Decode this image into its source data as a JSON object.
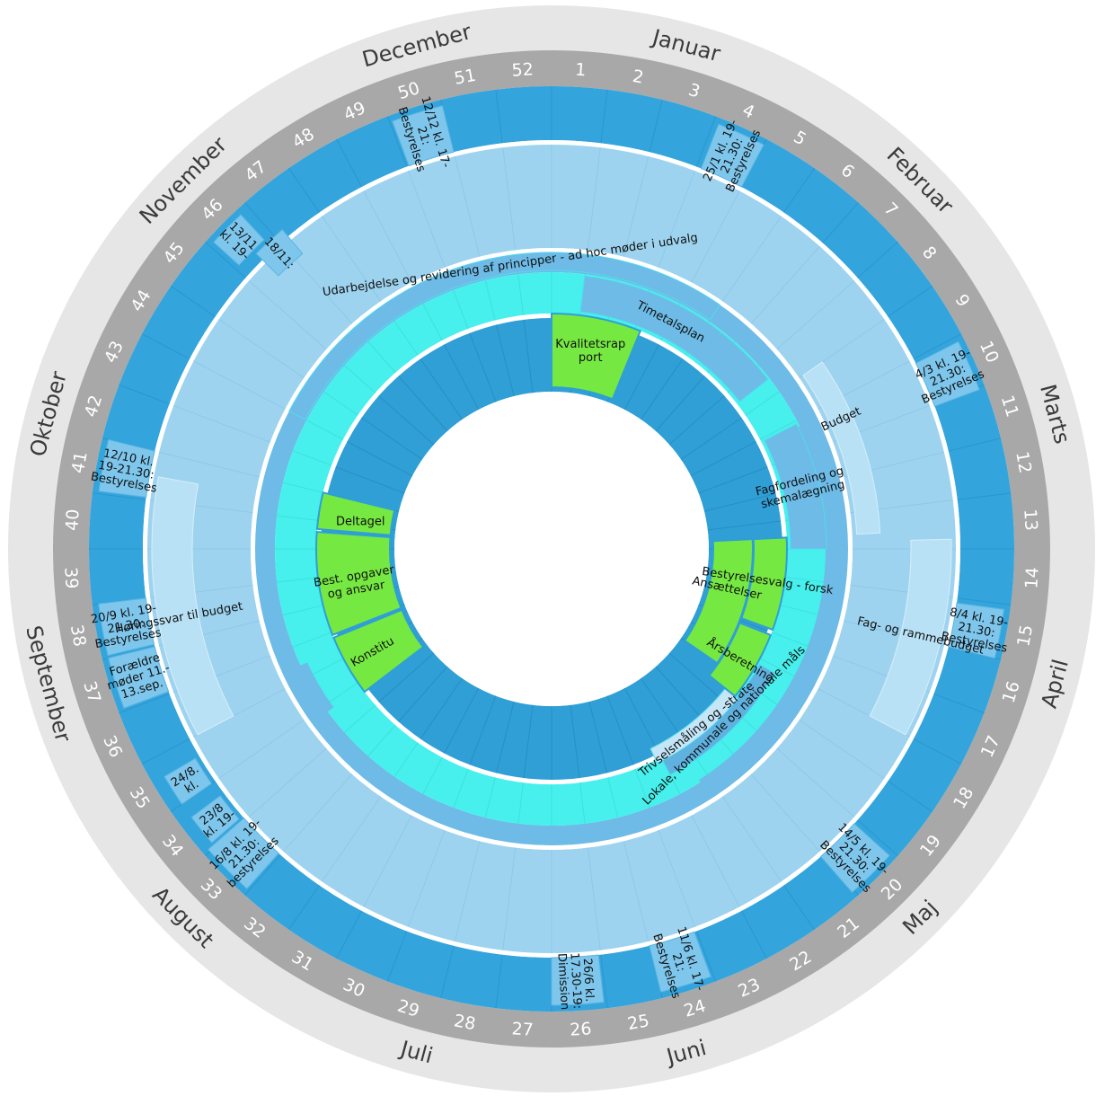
{
  "months": [
    "Januar",
    "Februar",
    "Marts",
    "April",
    "Maj",
    "Juni",
    "Juli",
    "August",
    "September",
    "Oktober",
    "November",
    "December"
  ],
  "weeks": [
    "1",
    "2",
    "3",
    "4",
    "5",
    "6",
    "7",
    "8",
    "9",
    "10",
    "11",
    "12",
    "13",
    "14",
    "15",
    "16",
    "17",
    "18",
    "19",
    "20",
    "21",
    "22",
    "23",
    "24",
    "25",
    "26",
    "27",
    "28",
    "29",
    "30",
    "31",
    "32",
    "33",
    "34",
    "35",
    "36",
    "37",
    "38",
    "39",
    "40",
    "41",
    "42",
    "43",
    "44",
    "45",
    "46",
    "47",
    "48",
    "49",
    "50",
    "51",
    "52"
  ],
  "colors": {
    "outer_ring": "#e6e6e6",
    "week_ring": "#a8a8a8",
    "events_ring": "#33a4dc",
    "event_box": "#7ec6ec",
    "light_ring": "#9ed3ef",
    "pale_band": "#b8e1f5",
    "mid_band": "#6dbbe6",
    "cyan_ring": "#47f0ec",
    "inner_ring": "#2f9fd6",
    "green": "#76e842",
    "separator": "#ffffff"
  },
  "events": [
    {
      "name": "event-week4",
      "w0": 3.1,
      "w1": 4.0,
      "r0": 455,
      "r1": 508,
      "lines": [
        "25/1 kl. 19-",
        "21.30:",
        "Bestyrelses"
      ]
    },
    {
      "name": "event-week10",
      "w0": 9.1,
      "w1": 10.05,
      "r0": 455,
      "r1": 508,
      "lines": [
        "4/3 kl. 19-",
        "21.30:",
        "Bestyrelses"
      ]
    },
    {
      "name": "event-week15",
      "w0": 14.1,
      "w1": 15.0,
      "r0": 455,
      "r1": 508,
      "lines": [
        "8/4 kl. 19-",
        "21.30:",
        "Bestyrelses"
      ]
    },
    {
      "name": "event-week20",
      "w0": 19.1,
      "w1": 20.05,
      "r0": 455,
      "r1": 508,
      "lines": [
        "14/5 kl. 19-",
        "21.30:",
        "Bestyrelses"
      ]
    },
    {
      "name": "event-week24",
      "w0": 23.05,
      "w1": 24.0,
      "r0": 455,
      "r1": 508,
      "lines": [
        "11/6 kl. 17-",
        "21:",
        "Bestyrelses"
      ]
    },
    {
      "name": "event-week26",
      "w0": 25.05,
      "w1": 26.0,
      "r0": 455,
      "r1": 508,
      "lines": [
        "26/6 kl.",
        "17.30-19:",
        "Dimission"
      ]
    },
    {
      "name": "event-week33",
      "w0": 32.05,
      "w1": 33.05,
      "r0": 455,
      "r1": 508,
      "lines": [
        "16/8 kl. 19-",
        "21.30:",
        "bestyrelses"
      ]
    },
    {
      "name": "event-week34",
      "w0": 33.1,
      "w1": 33.7,
      "r0": 460,
      "r1": 500,
      "lines": [
        "23/8",
        "kl. 19-"
      ]
    },
    {
      "name": "event-week35",
      "w0": 34.0,
      "w1": 34.6,
      "r0": 460,
      "r1": 500,
      "lines": [
        "24/8.",
        "kl."
      ]
    },
    {
      "name": "event-week37",
      "w0": 36.05,
      "w1": 37.0,
      "r0": 455,
      "r1": 508,
      "lines": [
        "Forældre",
        "møder 11.-",
        "13.sep."
      ]
    },
    {
      "name": "event-week38",
      "w0": 37.05,
      "w1": 38.0,
      "r0": 455,
      "r1": 508,
      "lines": [
        "20/9 kl. 19-",
        "21.30:",
        "Bestyrelses"
      ]
    },
    {
      "name": "event-week41",
      "w0": 40.05,
      "w1": 41.0,
      "r0": 455,
      "r1": 508,
      "lines": [
        "12/10 kl.",
        "19-21.30:",
        "Bestyrelses"
      ]
    },
    {
      "name": "event-week46a",
      "w0": 45.1,
      "w1": 45.8,
      "r0": 470,
      "r1": 508,
      "lines": [
        "13/11",
        "kl. 19-"
      ]
    },
    {
      "name": "event-week46b",
      "w0": 45.5,
      "w1": 46.2,
      "r0": 430,
      "r1": 465,
      "lines": [
        "18/11:"
      ]
    },
    {
      "name": "event-week50",
      "w0": 49.05,
      "w1": 50.0,
      "r0": 455,
      "r1": 508,
      "lines": [
        "12/12 kl. 17-",
        "21:",
        "Bestyrelses"
      ]
    }
  ],
  "bands": [
    {
      "name": "budget-band",
      "w0": 8.0,
      "w1": 12.6,
      "r0": 340,
      "r1": 366,
      "label": "Budget",
      "cw": 9.5,
      "cr": 353,
      "fill": "pale_band"
    },
    {
      "name": "fag-og-rammebudget-band",
      "w0": 12.8,
      "w1": 17.0,
      "r0": 400,
      "r1": 445,
      "label": "Fag- og rammebudget",
      "cw": 14.9,
      "cr": 422,
      "fill": "pale_band"
    },
    {
      "name": "horingssvar-band",
      "w0": 35.0,
      "w1": 40.5,
      "r0": 400,
      "r1": 445,
      "label": "Høringssvar til budget",
      "cw": 37.5,
      "cr": 422,
      "fill": "pale_band"
    }
  ],
  "mid_ring_bands": [
    {
      "name": "udarbejdelse-band",
      "w0": 43.0,
      "w1": 57.0,
      "r0": 310,
      "r1": 330,
      "label": "Udarbejdelse og revidering af principper - ad hoc møder i udvalg",
      "cw": 50.8,
      "cr": 320
    },
    {
      "name": "timetalsplan-band",
      "w0": 1.0,
      "w1": 7.5,
      "r0": 266,
      "r1": 306,
      "label": "Timetalsplan",
      "cw": 4.0,
      "cr": 286
    },
    {
      "name": "fagfordeling-band",
      "w0": 9.1,
      "w1": 13.0,
      "r0": 266,
      "r1": 306,
      "label": "Fagfordeling og skemalægning",
      "cw": 11.0,
      "cr": 286
    },
    {
      "name": "lokale-band",
      "w0": 17.2,
      "w1": 22.0,
      "r0": 265,
      "r1": 284,
      "label": "Lokale, kommunale og nationale måls",
      "cw": 19.6,
      "cr": 274
    },
    {
      "name": "trivsel-band",
      "w0": 18.6,
      "w1": 22.2,
      "r0": 248,
      "r1": 266,
      "label": "Trivselsmåling og -strate",
      "cw": 20.4,
      "cr": 257
    }
  ],
  "green": [
    {
      "name": "kvalitetsrapport",
      "w0": 0.0,
      "w1": 3.2,
      "r0": 180,
      "r1": 262,
      "lines": [
        "Kvalitetsrap",
        "port"
      ],
      "cw": 1.6,
      "cr": 225,
      "rotate": false
    },
    {
      "name": "ansaettelser",
      "w0": 12.6,
      "w1": 18.0,
      "r0": 180,
      "r1": 224,
      "lines": [
        "Ansættelser"
      ],
      "cw": 14.8,
      "cr": 200,
      "rotate": true
    },
    {
      "name": "bestyrelsesvalg",
      "w0": 12.6,
      "w1": 15.9,
      "r0": 225,
      "r1": 262,
      "lines": [
        "Bestyrelsesvalg - forsk"
      ],
      "cw": 14.2,
      "cr": 243,
      "rotate": true
    },
    {
      "name": "aarsberetning",
      "w0": 16.1,
      "w1": 18.6,
      "r0": 225,
      "r1": 262,
      "lines": [
        "Årsberetning"
      ],
      "cw": 17.4,
      "cr": 244,
      "rotate": true
    },
    {
      "name": "konstitu",
      "w0": 33.6,
      "w1": 35.8,
      "r0": 180,
      "r1": 262,
      "lines": [
        "Konstitu"
      ],
      "cw": 34.7,
      "cr": 230,
      "rotate": true
    },
    {
      "name": "best-opgaver",
      "w0": 35.9,
      "w1": 39.6,
      "r0": 180,
      "r1": 262,
      "lines": [
        "Best. opgaver",
        "og ansvar"
      ],
      "cw": 37.6,
      "cr": 222,
      "rotate": true
    },
    {
      "name": "deltagel",
      "w0": 39.7,
      "w1": 41.0,
      "r0": 180,
      "r1": 262,
      "lines": [
        "Deltagel"
      ],
      "cw": 40.2,
      "cr": 215,
      "rotate": false
    }
  ]
}
